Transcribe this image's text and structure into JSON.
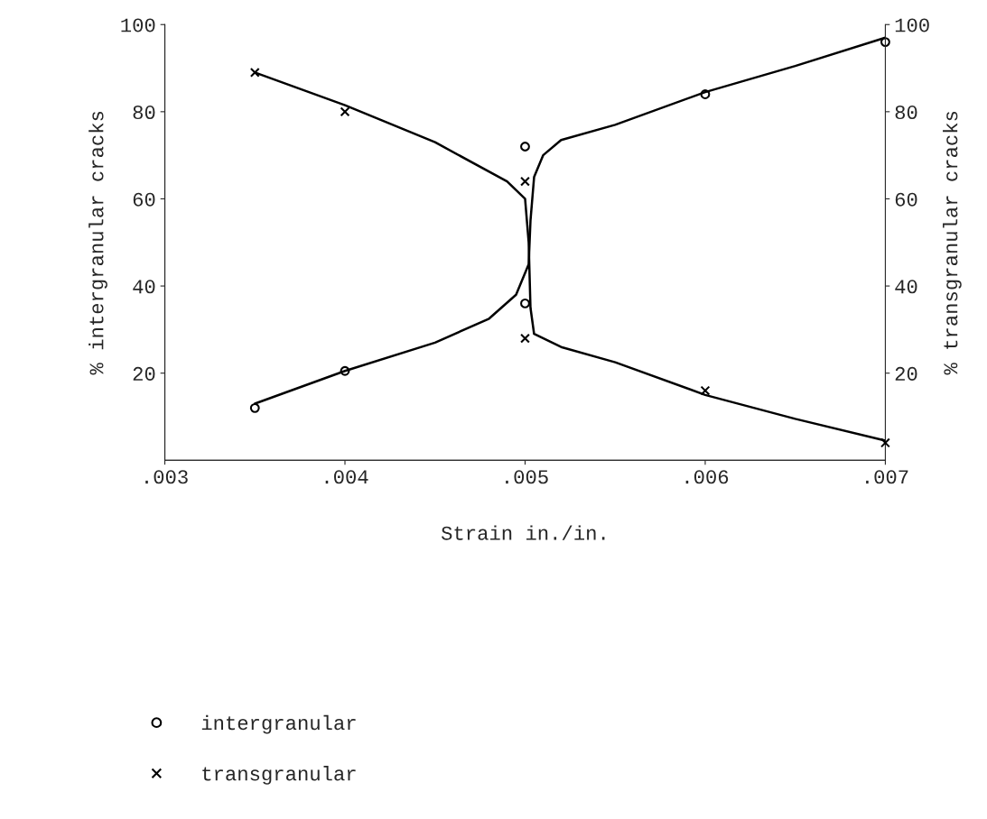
{
  "chart_data": {
    "type": "scatter",
    "xlabel": "Strain in./in.",
    "ylabel": "% intergranular cracks",
    "y2label": "% transgranular cracks",
    "xlim": [
      0.003,
      0.007
    ],
    "xticks": [
      {
        "value": 0.003,
        "label": ".003"
      },
      {
        "value": 0.004,
        "label": ".004"
      },
      {
        "value": 0.005,
        "label": ".005"
      },
      {
        "value": 0.006,
        "label": ".006"
      },
      {
        "value": 0.007,
        "label": ".007"
      }
    ],
    "ylim": [
      0,
      100
    ],
    "yticks": [
      20,
      40,
      60,
      80,
      100
    ],
    "y2lim": [
      0,
      100
    ],
    "y2ticks": [
      20,
      40,
      60,
      80,
      100
    ],
    "legend": "bottom",
    "grid": false,
    "series": [
      {
        "type": "line",
        "color": "#000000",
        "marker": "none",
        "line_style": "solid",
        "x": [
          0.0035,
          0.004,
          0.0045,
          0.0048,
          0.00495,
          0.00502,
          0.00503,
          0.00505,
          0.0051,
          0.0052,
          0.0055,
          0.006,
          0.0065,
          0.007
        ],
        "values": [
          13,
          20.5,
          27,
          32.5,
          38,
          45,
          55,
          65,
          70,
          73.5,
          77,
          84.5,
          90.5,
          97
        ]
      },
      {
        "type": "line",
        "color": "#000000",
        "marker": "none",
        "line_style": "solid",
        "axis": "y2",
        "x": [
          0.0035,
          0.004,
          0.0045,
          0.0049,
          0.005,
          0.00502,
          0.00503,
          0.00505,
          0.0052,
          0.0055,
          0.006,
          0.0065,
          0.007
        ],
        "values": [
          89,
          81.5,
          73,
          64,
          60,
          50,
          35,
          29,
          26,
          22.5,
          15,
          9.5,
          4.5
        ]
      },
      {
        "name": "intergranular",
        "color": "#000000",
        "marker": "circle",
        "x": [
          0.0035,
          0.004,
          0.005,
          0.005,
          0.006,
          0.007
        ],
        "values": [
          12,
          20.5,
          72,
          36,
          84,
          96
        ]
      },
      {
        "name": "transgranular",
        "color": "#000000",
        "marker": "cross",
        "axis": "y2",
        "x": [
          0.0035,
          0.004,
          0.005,
          0.005,
          0.006,
          0.007
        ],
        "values": [
          89,
          80,
          64,
          28,
          16,
          4
        ]
      }
    ]
  }
}
